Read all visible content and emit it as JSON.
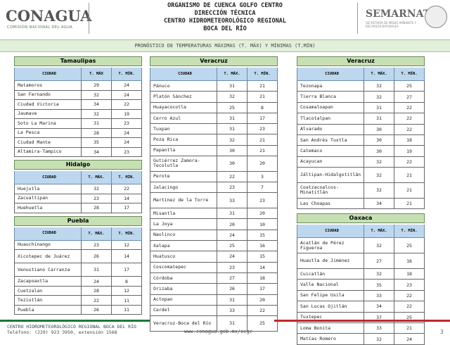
{
  "header": {
    "logo": "CONAGUA",
    "logo_sub": "COMISIÓN NACIONAL DEL AGUA",
    "lines": [
      "ORGANISMO DE CUENCA GOLFO CENTRO",
      "DIRECCIÓN TÉCNICA",
      "CENTRO HIDROMETEOROLÓGICO REGIONAL",
      "BOCA DEL RÍO"
    ],
    "agency": "SEMARNAT",
    "agency_sub": "SECRETARÍA DE MEDIO AMBIENTE Y RECURSOS NATURALES"
  },
  "banner": "PRONÓSTICO DE TEMPERATURAS MÁXIMAS (T. MÁX) Y MÍNIMAS (T.MÍN)",
  "columns": [
    {
      "tables": [
        {
          "title": "Tamaulipas",
          "header": [
            "CIUDAD",
            "T. MÁX",
            "T. MÍN."
          ],
          "rows": [
            [
              "Matamoros",
              "29",
              "24"
            ],
            [
              "San Fernando",
              "32",
              "24"
            ],
            [
              "Ciudad Victoria",
              "34",
              "22"
            ],
            [
              "Jaumave",
              "32",
              "19"
            ],
            [
              "Soto La Marina",
              "31",
              "23"
            ],
            [
              "La Pesca",
              "28",
              "24"
            ],
            [
              "Ciudad Mante",
              "35",
              "24"
            ],
            [
              "Altamira-Tampico",
              "34",
              "23"
            ]
          ]
        },
        {
          "title": "Hidalgo",
          "header": [
            "CIUDAD",
            "T. MÁX.",
            "T. MÍN."
          ],
          "rows": [
            [
              "Huejutla",
              "32",
              "22"
            ],
            [
              "Zacualtipan",
              "23",
              "14"
            ],
            [
              "Huehuetla",
              "28",
              "17"
            ]
          ]
        },
        {
          "title": "Puebla",
          "header": [
            "CIUDAD",
            "T. MÁX.",
            "T. MÍN."
          ],
          "rows": [
            [
              "Huauchinango",
              "23",
              "12"
            ],
            [
              "Xicotepec de Juárez",
              "26",
              "14"
            ],
            [
              "Venustiano Carranza",
              "31",
              "17"
            ],
            [
              "Zacapoaxtla",
              "24",
              "8"
            ],
            [
              "Cuetzalan",
              "28",
              "12"
            ],
            [
              "Teziutlán",
              "22",
              "11"
            ],
            [
              "Puebla",
              "26",
              "11"
            ]
          ]
        }
      ]
    },
    {
      "tables": [
        {
          "title": "Veracruz",
          "header": [
            "CIUDAD",
            "T. MÁX.",
            "T. MÍN."
          ],
          "rows": [
            [
              "Pánuco",
              "31",
              "21"
            ],
            [
              "Platón Sánchez",
              "32",
              "21"
            ],
            [
              "Huayacocotla",
              "25",
              "8"
            ],
            [
              "Cerro Azul",
              "31",
              "17"
            ],
            [
              "Tuxpan",
              "31",
              "23"
            ],
            [
              "Poza Rica",
              "32",
              "21"
            ],
            [
              "Papantla",
              "30",
              "21"
            ],
            [
              "Gutiérrez Zamora-Tecolutla",
              "30",
              "20"
            ],
            [
              "Perote",
              "22",
              "3"
            ],
            [
              "Jalacingo",
              "23",
              "7"
            ],
            [
              "Martínez de la Torre",
              "33",
              "23"
            ],
            [
              "Misantla",
              "31",
              "20"
            ],
            [
              "La Joya",
              "20",
              "10"
            ],
            [
              "Naolinco",
              "24",
              "15"
            ],
            [
              "Xalapa",
              "25",
              "16"
            ],
            [
              "Huatusco",
              "24",
              "15"
            ],
            [
              "Coscomatepec",
              "23",
              "14"
            ],
            [
              "Córdoba",
              "27",
              "18"
            ],
            [
              "Orizaba",
              "26",
              "17"
            ],
            [
              "Actopan",
              "31",
              "20"
            ],
            [
              "Cardel",
              "33",
              "22"
            ],
            [
              "Veracruz-Boca del Río",
              "31",
              "25"
            ]
          ]
        }
      ]
    },
    {
      "tables": [
        {
          "title": "Veracruz",
          "header": [
            "CIUDAD",
            "T. MÁX.",
            "T. MÍN."
          ],
          "rows": [
            [
              "Tezonapa",
              "32",
              "25"
            ],
            [
              "Tierra Blanca",
              "32",
              "27"
            ],
            [
              "Cosamaloapan",
              "31",
              "22"
            ],
            [
              "Tlacotalpan",
              "31",
              "22"
            ],
            [
              "Alvarado",
              "30",
              "22"
            ],
            [
              "San Andrés Tuxtla",
              "30",
              "18"
            ],
            [
              "Catemaco",
              "30",
              "19"
            ],
            [
              "Acayucan",
              "32",
              "22"
            ],
            [
              "Jáltipan-Hidalgotitlán",
              "32",
              "21"
            ],
            [
              "Coatzacoalcos-Minatitlán",
              "32",
              "21"
            ],
            [
              "Las Choapas",
              "34",
              "21"
            ]
          ]
        },
        {
          "title": "Oaxaca",
          "header": [
            "CIUDAD",
            "T. MÁX.",
            "T. MÍN."
          ],
          "rows": [
            [
              "Acatlán de Pérez Figueroa",
              "32",
              "25"
            ],
            [
              "Huautla de Jiménez",
              "27",
              "16"
            ],
            [
              "Cuicatlán",
              "32",
              "18"
            ],
            [
              "Valle Nacional",
              "35",
              "23"
            ],
            [
              "San Felipe Usila",
              "33",
              "22"
            ],
            [
              "San Lucas Ojitlán",
              "34",
              "22"
            ],
            [
              "Tuxtepec",
              "37",
              "25"
            ],
            [
              "Loma Bonita",
              "33",
              "21"
            ],
            [
              "Matías Romero",
              "32",
              "24"
            ]
          ]
        }
      ]
    }
  ],
  "footer": {
    "center": "CENTRO HIDROMETEOROLÓGICO REGIONAL BOCA DEL RÍO",
    "phone": "Teléfono: (229) 923 3950, extensión 1568",
    "url": "www.conagua.gob.mx/ocgc",
    "page": "3"
  }
}
